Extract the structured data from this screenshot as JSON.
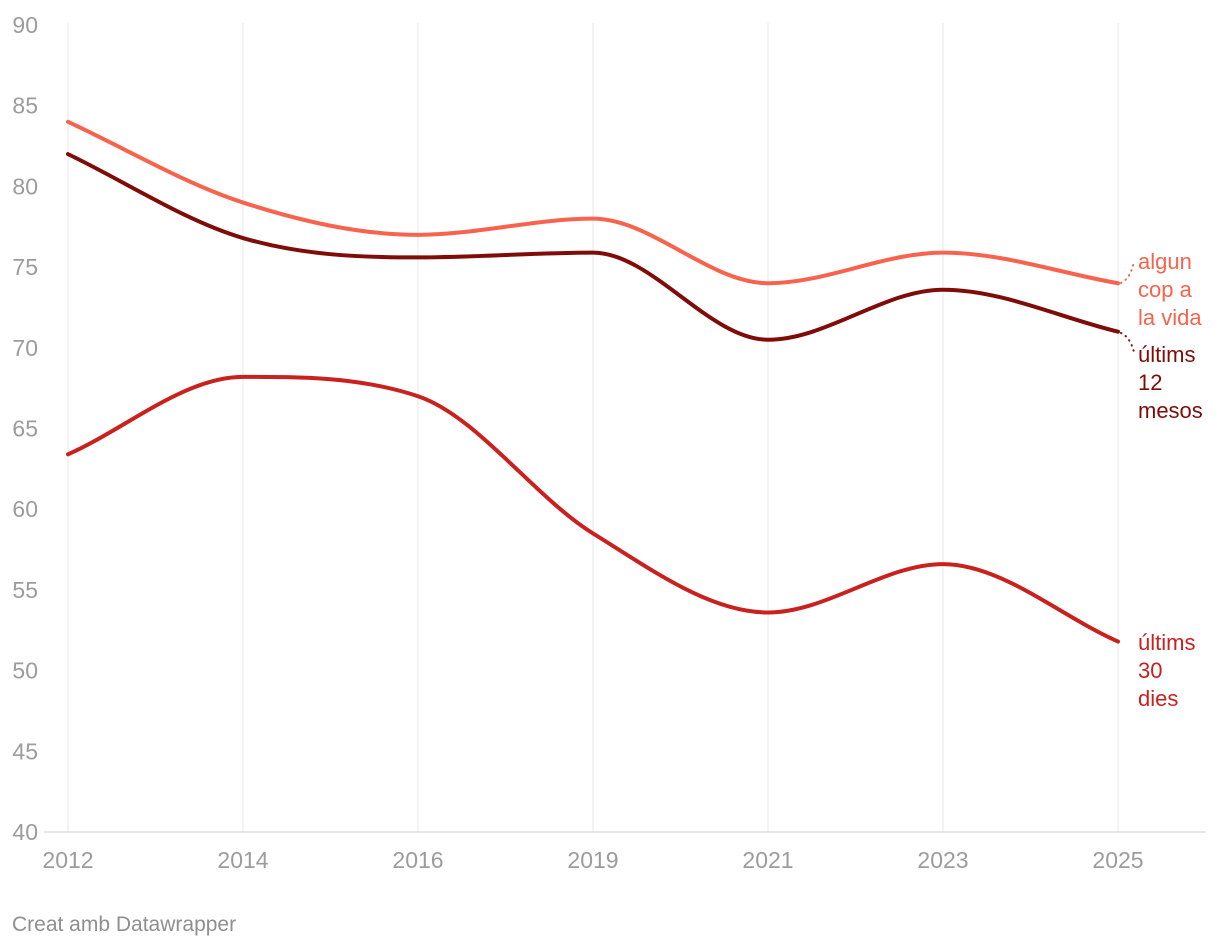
{
  "chart_data": {
    "type": "line",
    "title": "",
    "xlabel": "",
    "ylabel": "",
    "categories": [
      "2012",
      "2014",
      "2016",
      "2019",
      "2021",
      "2023",
      "2025"
    ],
    "series": [
      {
        "name": "algun cop a la vida",
        "label_lines": [
          "algun",
          "cop a",
          "la vida"
        ],
        "color": "#f7634c",
        "values": [
          84.0,
          79.0,
          77.0,
          78.0,
          74.0,
          75.9,
          74.0
        ]
      },
      {
        "name": "últims 12 mesos",
        "label_lines": [
          "últims",
          "12",
          "mesos"
        ],
        "color": "#7f0c08",
        "values": [
          82.0,
          76.8,
          75.6,
          75.9,
          70.5,
          73.6,
          71.0
        ]
      },
      {
        "name": "últims 30 dies",
        "label_lines": [
          "últims",
          "30",
          "dies"
        ],
        "color": "#c9211e",
        "values": [
          63.4,
          68.2,
          67.0,
          58.5,
          53.6,
          56.6,
          51.8
        ]
      }
    ],
    "ylim": [
      40,
      90
    ],
    "ytick_step": 5,
    "yticks": [
      "40",
      "45",
      "50",
      "55",
      "60",
      "65",
      "70",
      "75",
      "80",
      "85",
      "90"
    ],
    "grid": "vertical-only",
    "legend_position": "direct-labels-right",
    "curve": "monotone"
  },
  "colors": {
    "background": "#ffffff",
    "gridline": "#e7e7e7",
    "axis_line": "#cfcfcf",
    "axis_text": "#9c9c9c",
    "footer_text": "#8f8f8f"
  },
  "footer": {
    "credit": "Creat amb Datawrapper"
  }
}
